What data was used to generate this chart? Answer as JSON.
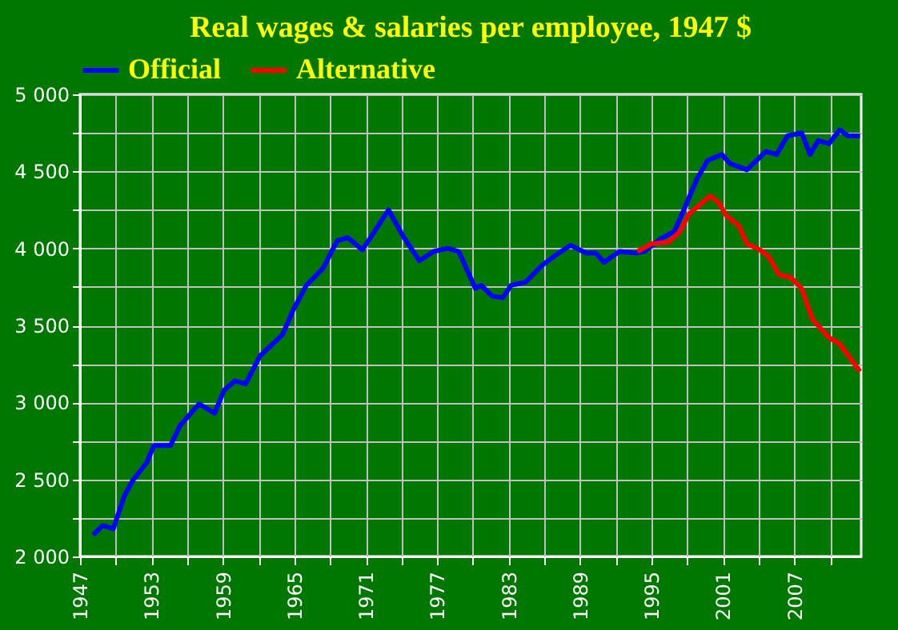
{
  "chart_data": {
    "type": "line",
    "title": "Real wages & salaries per employee, 1947 $",
    "xlim": [
      1947,
      2012.6
    ],
    "xticks": [
      1947,
      {
        "value": 1950,
        "label": null
      },
      1953,
      {
        "value": 1956,
        "label": null
      },
      1959,
      {
        "value": 1962,
        "label": null
      },
      1965,
      {
        "value": 1968,
        "label": null
      },
      1971,
      {
        "value": 1974,
        "label": null
      },
      1977,
      {
        "value": 1980,
        "label": null
      },
      1983,
      {
        "value": 1986,
        "label": null
      },
      1989,
      {
        "value": 1992,
        "label": null
      },
      1995,
      {
        "value": 1998,
        "label": null
      },
      2001,
      {
        "value": 2004,
        "label": null
      },
      2007,
      {
        "value": 2010,
        "label": null
      }
    ],
    "ylim": [
      2000,
      5000
    ],
    "yticks": [
      {
        "value": 2000,
        "label": "2 000"
      },
      {
        "value": 2250,
        "label": null
      },
      {
        "value": 2500,
        "label": "2 500"
      },
      {
        "value": 2750,
        "label": null
      },
      {
        "value": 3000,
        "label": "3 000"
      },
      {
        "value": 3250,
        "label": null
      },
      {
        "value": 3500,
        "label": "3 500"
      },
      {
        "value": 3750,
        "label": null
      },
      {
        "value": 4000,
        "label": "4 000"
      },
      {
        "value": 4250,
        "label": null
      },
      {
        "value": 4500,
        "label": "4 500"
      },
      {
        "value": 4750,
        "label": null
      },
      {
        "value": 5000,
        "label": "5 000"
      }
    ],
    "grid": true,
    "legend": "top",
    "marker": "none",
    "line_style": "solid",
    "series": [
      {
        "name": "Official",
        "color": "#0000ff",
        "x": [
          1948.1,
          1948.9,
          1949.8,
          1950.7,
          1951.4,
          1952.6,
          1953.2,
          1954.6,
          1955.4,
          1957.0,
          1958.3,
          1959.1,
          1960.0,
          1960.9,
          1962.1,
          1964.0,
          1964.9,
          1966.0,
          1967.4,
          1968.6,
          1969.5,
          1970.7,
          1971.4,
          1972.9,
          1974.2,
          1975.5,
          1976.7,
          1977.9,
          1978.8,
          1980.2,
          1980.7,
          1981.6,
          1982.5,
          1983.2,
          1984.4,
          1985.8,
          1987.2,
          1988.2,
          1989.5,
          1990.3,
          1991.0,
          1992.3,
          1993.7,
          1994.4,
          1995.7,
          1996.9,
          1997.6,
          1998.8,
          1999.7,
          2000.9,
          2001.6,
          2003.0,
          2004.6,
          2005.5,
          2006.4,
          2007.6,
          2008.3,
          2009.0,
          2009.9,
          2010.8,
          2011.5,
          2012.5
        ],
        "values": [
          2140,
          2200,
          2180,
          2390,
          2490,
          2610,
          2720,
          2720,
          2850,
          2990,
          2930,
          3080,
          3140,
          3120,
          3300,
          3440,
          3600,
          3760,
          3870,
          4050,
          4070,
          3990,
          4070,
          4250,
          4070,
          3920,
          3980,
          4000,
          3980,
          3740,
          3760,
          3690,
          3680,
          3760,
          3780,
          3890,
          3970,
          4020,
          3970,
          3970,
          3910,
          3980,
          3970,
          3980,
          4060,
          4110,
          4230,
          4450,
          4570,
          4610,
          4550,
          4510,
          4630,
          4610,
          4730,
          4750,
          4610,
          4700,
          4680,
          4770,
          4730,
          4730
        ]
      },
      {
        "name": "Alternative",
        "color": "#ff0000",
        "x": [
          1993.8,
          1995.0,
          1996.4,
          1997.4,
          1998.1,
          1999.0,
          1999.9,
          2000.6,
          2001.3,
          2002.3,
          2003.0,
          2004.1,
          2004.8,
          2005.7,
          2006.7,
          2007.6,
          2008.5,
          2009.9,
          2010.8,
          2012.5
        ],
        "values": [
          3980,
          4030,
          4040,
          4110,
          4220,
          4280,
          4340,
          4300,
          4210,
          4150,
          4030,
          3990,
          3950,
          3830,
          3810,
          3740,
          3540,
          3420,
          3380,
          3200
        ]
      }
    ]
  }
}
